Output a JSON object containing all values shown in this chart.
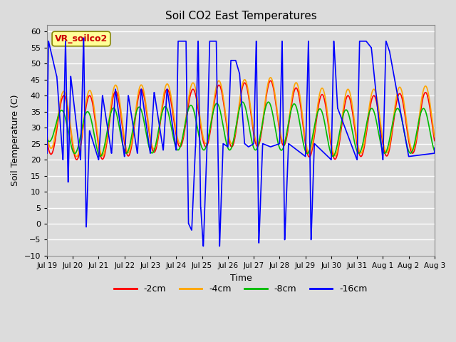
{
  "title": "Soil CO2 East Temperatures",
  "xlabel": "Time",
  "ylabel": "Soil Temperature (C)",
  "ylim": [
    -10,
    62
  ],
  "xlim": [
    0,
    15
  ],
  "background_color": "#dcdcdc",
  "plot_bg_color": "#dcdcdc",
  "grid_color": "#ffffff",
  "colors": {
    "2cm": "#ff0000",
    "4cm": "#ffa500",
    "8cm": "#00bb00",
    "16cm": "#0000ff"
  },
  "legend_labels": [
    "-2cm",
    "-4cm",
    "-8cm",
    "-16cm"
  ],
  "annotation_text": "VR_soilco2",
  "annotation_color": "#cc0000",
  "annotation_bg": "#ffff99",
  "tick_labels": [
    "Jul 19",
    "Jul 20",
    "Jul 21",
    "Jul 22",
    "Jul 23",
    "Jul 24",
    "Jul 25",
    "Jul 26",
    "Jul 27",
    "Jul 28",
    "Jul 29",
    "Jul 30",
    "Jul 31",
    "Aug 1",
    "Aug 2",
    "Aug 3"
  ],
  "yticks": [
    -10,
    -5,
    0,
    5,
    10,
    15,
    20,
    25,
    30,
    35,
    40,
    45,
    50,
    55,
    60
  ]
}
